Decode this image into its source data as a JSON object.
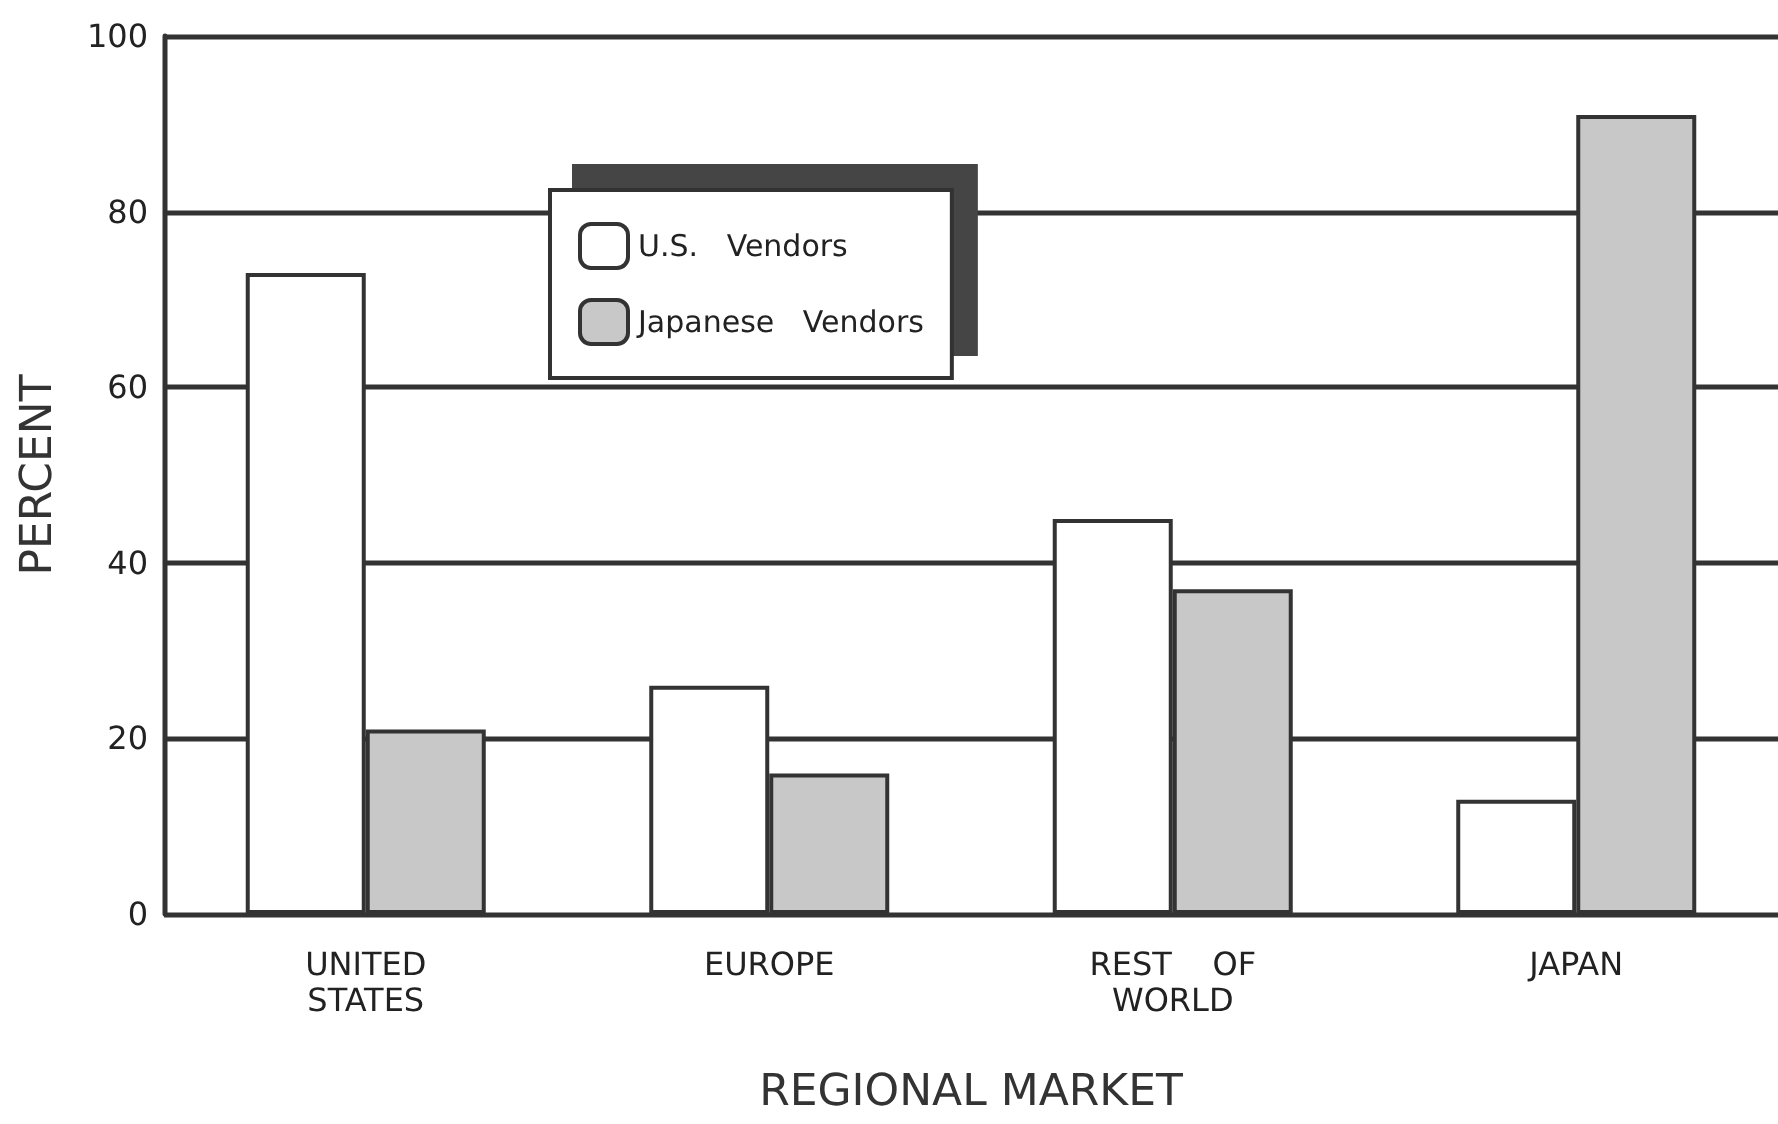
{
  "chart_data": {
    "type": "bar",
    "xlabel": "REGIONAL MARKET",
    "ylabel": "PERCENT",
    "categories": [
      "UNITED\nSTATES",
      "EUROPE",
      "REST    OF\nWORLD",
      "JAPAN"
    ],
    "series": [
      {
        "name": "U.S.   Vendors",
        "color": "#ffffff",
        "values": [
          73,
          26,
          45,
          13
        ]
      },
      {
        "name": "Japanese   Vendors",
        "color": "#c8c8c8",
        "values": [
          21,
          16,
          37,
          91
        ]
      }
    ],
    "ylim": [
      0,
      100
    ],
    "yticks": [
      0,
      20,
      40,
      60,
      80,
      100
    ],
    "grid": "y",
    "legend": "top"
  }
}
